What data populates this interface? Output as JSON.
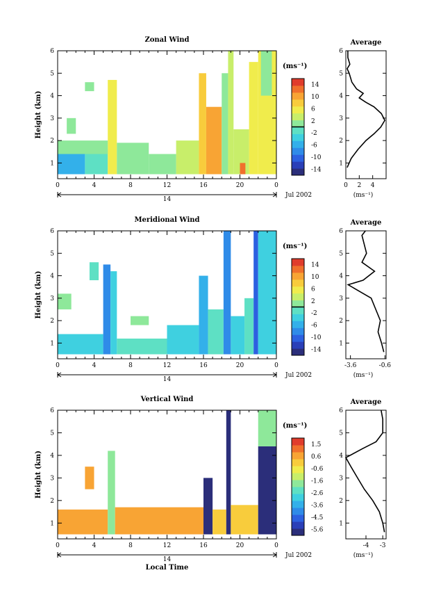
{
  "chart_data": [
    {
      "type": "heatmap",
      "title": "Zonal Wind",
      "ylabel": "Height (km)",
      "xlabel": "",
      "xlim": [
        0,
        24
      ],
      "ylim": [
        0.3,
        6
      ],
      "x_ticks": [
        "0",
        "4",
        "8",
        "12",
        "16",
        "20",
        "0"
      ],
      "y_ticks": [
        "1",
        "2",
        "3",
        "4",
        "5",
        "6"
      ],
      "date_label": "14",
      "date_suffix": "Jul 2002",
      "colorbar": {
        "unit": "(ms⁻¹)",
        "labels": [
          "14",
          "10",
          "6",
          "2",
          "-2",
          "-6",
          "-10",
          "-14"
        ],
        "min": -16,
        "max": 16,
        "zero_line": 0
      },
      "profile": {
        "title": "Average",
        "xlabel": "(ms⁻¹)",
        "x_ticks": [
          "0",
          "2",
          "4"
        ],
        "xlim": [
          0,
          6
        ],
        "y_ticks": [
          "1",
          "2",
          "3",
          "4",
          "5",
          "6"
        ],
        "points": [
          [
            0.2,
            0.8
          ],
          [
            0.8,
            1.2
          ],
          [
            1.8,
            1.6
          ],
          [
            3,
            2
          ],
          [
            4.2,
            2.3
          ],
          [
            5.2,
            2.6
          ],
          [
            5.8,
            2.9
          ],
          [
            5.3,
            3.2
          ],
          [
            4.2,
            3.5
          ],
          [
            3,
            3.7
          ],
          [
            2,
            3.9
          ],
          [
            2.6,
            4.1
          ],
          [
            1.6,
            4.3
          ],
          [
            0.9,
            4.6
          ],
          [
            0.5,
            5
          ],
          [
            0.2,
            5.2
          ],
          [
            0.6,
            5.4
          ],
          [
            0.3,
            5.7
          ],
          [
            0.3,
            6
          ]
        ]
      },
      "blocks": [
        {
          "x": [
            0,
            3
          ],
          "y": [
            0.5,
            1.4
          ],
          "v": -5
        },
        {
          "x": [
            3,
            5.5
          ],
          "y": [
            0.5,
            1.6
          ],
          "v": -2
        },
        {
          "x": [
            5.5,
            6.5
          ],
          "y": [
            0.5,
            4.7
          ],
          "v": 5
        },
        {
          "x": [
            0,
            5.5
          ],
          "y": [
            1.4,
            2
          ],
          "v": 1
        },
        {
          "x": [
            6.5,
            10
          ],
          "y": [
            0.5,
            1.9
          ],
          "v": 1
        },
        {
          "x": [
            10,
            13
          ],
          "y": [
            0.5,
            1.4
          ],
          "v": 2
        },
        {
          "x": [
            13,
            15.5
          ],
          "y": [
            0.5,
            2
          ],
          "v": 4
        },
        {
          "x": [
            15.5,
            16.3
          ],
          "y": [
            0.5,
            5
          ],
          "v": 9
        },
        {
          "x": [
            16.3,
            18
          ],
          "y": [
            0.5,
            3.5
          ],
          "v": 10
        },
        {
          "x": [
            18,
            18.7
          ],
          "y": [
            0.5,
            5
          ],
          "v": 1
        },
        {
          "x": [
            18.7,
            19.3
          ],
          "y": [
            0.5,
            6
          ],
          "v": 4
        },
        {
          "x": [
            19.3,
            21
          ],
          "y": [
            0.5,
            2.5
          ],
          "v": 3
        },
        {
          "x": [
            20,
            20.6
          ],
          "y": [
            0.5,
            1
          ],
          "v": 12
        },
        {
          "x": [
            21,
            22
          ],
          "y": [
            0.5,
            5.5
          ],
          "v": 5
        },
        {
          "x": [
            22,
            24
          ],
          "y": [
            0.5,
            6
          ],
          "v": 6
        },
        {
          "x": [
            22.3,
            23.5
          ],
          "y": [
            4,
            6
          ],
          "v": 0
        },
        {
          "x": [
            1,
            2
          ],
          "y": [
            2.3,
            3
          ],
          "v": 2
        },
        {
          "x": [
            3,
            4
          ],
          "y": [
            4.2,
            4.6
          ],
          "v": 1
        }
      ]
    },
    {
      "type": "heatmap",
      "title": "Meridional Wind",
      "ylabel": "Height (km)",
      "xlabel": "",
      "xlim": [
        0,
        24
      ],
      "ylim": [
        0.3,
        6
      ],
      "x_ticks": [
        "0",
        "4",
        "8",
        "12",
        "16",
        "20",
        "0"
      ],
      "y_ticks": [
        "1",
        "2",
        "3",
        "4",
        "5",
        "6"
      ],
      "date_label": "14",
      "date_suffix": "Jul 2002",
      "colorbar": {
        "unit": "(ms⁻¹)",
        "labels": [
          "14",
          "10",
          "6",
          "2",
          "-2",
          "-6",
          "-10",
          "-14"
        ],
        "min": -16,
        "max": 16,
        "zero_line": 0
      },
      "profile": {
        "title": "Average",
        "xlabel": "(ms⁻¹)",
        "x_ticks": [
          "-3.6",
          "-0.6"
        ],
        "xlim": [
          -4,
          -0.5
        ],
        "y_ticks": [
          "1",
          "2",
          "3",
          "4",
          "5",
          "6"
        ],
        "points": [
          [
            -0.7,
            0.6
          ],
          [
            -0.9,
            1
          ],
          [
            -1.2,
            1.5
          ],
          [
            -1.0,
            2
          ],
          [
            -1.4,
            2.5
          ],
          [
            -1.8,
            3
          ],
          [
            -2.8,
            3.3
          ],
          [
            -3.8,
            3.6
          ],
          [
            -2.5,
            3.8
          ],
          [
            -1.5,
            4.2
          ],
          [
            -2.6,
            4.6
          ],
          [
            -2.2,
            5
          ],
          [
            -2.4,
            5.4
          ],
          [
            -2.6,
            5.8
          ],
          [
            -2.3,
            6
          ]
        ]
      },
      "blocks": [
        {
          "x": [
            0,
            5
          ],
          "y": [
            0.5,
            1.4
          ],
          "v": -4
        },
        {
          "x": [
            5,
            5.8
          ],
          "y": [
            0.5,
            4.5
          ],
          "v": -8
        },
        {
          "x": [
            5.8,
            6.5
          ],
          "y": [
            0.5,
            4.2
          ],
          "v": -3
        },
        {
          "x": [
            6.5,
            12
          ],
          "y": [
            0.5,
            1.2
          ],
          "v": -2
        },
        {
          "x": [
            12,
            15.5
          ],
          "y": [
            0.5,
            1.8
          ],
          "v": -3
        },
        {
          "x": [
            15.5,
            16.5
          ],
          "y": [
            0.5,
            4
          ],
          "v": -5
        },
        {
          "x": [
            16.5,
            18.2
          ],
          "y": [
            0.5,
            2.5
          ],
          "v": -2
        },
        {
          "x": [
            18.2,
            19
          ],
          "y": [
            0.5,
            6
          ],
          "v": -9
        },
        {
          "x": [
            19,
            20.5
          ],
          "y": [
            0.5,
            2.2
          ],
          "v": -3
        },
        {
          "x": [
            20.5,
            21.5
          ],
          "y": [
            0.5,
            3
          ],
          "v": -1
        },
        {
          "x": [
            21.5,
            22
          ],
          "y": [
            0.5,
            6
          ],
          "v": -11
        },
        {
          "x": [
            22,
            24
          ],
          "y": [
            0.5,
            6
          ],
          "v": -4
        },
        {
          "x": [
            0,
            1.5
          ],
          "y": [
            2.5,
            3.2
          ],
          "v": 2
        },
        {
          "x": [
            3.5,
            4.5
          ],
          "y": [
            3.8,
            4.6
          ],
          "v": -1
        },
        {
          "x": [
            8,
            10
          ],
          "y": [
            1.8,
            2.2
          ],
          "v": 1
        }
      ]
    },
    {
      "type": "heatmap",
      "title": "Vertical Wind",
      "ylabel": "Height (km)",
      "xlabel": "Local Time",
      "xlim": [
        0,
        24
      ],
      "ylim": [
        0.3,
        6
      ],
      "x_ticks": [
        "0",
        "4",
        "8",
        "12",
        "16",
        "20",
        "0"
      ],
      "y_ticks": [
        "1",
        "2",
        "3",
        "4",
        "5",
        "6"
      ],
      "date_label": "14",
      "date_suffix": "Jul 2002",
      "colorbar": {
        "unit": "(ms⁻¹)",
        "labels": [
          "1.5",
          "0.6",
          "-0.6",
          "-1.6",
          "-2.6",
          "-3.6",
          "-4.5",
          "-5.6"
        ],
        "min": -6,
        "max": 2,
        "zero_line": null
      },
      "profile": {
        "title": "Average",
        "xlabel": "(ms⁻¹)",
        "x_ticks": [
          "-4",
          "-3"
        ],
        "xlim": [
          -5.2,
          -2.8
        ],
        "y_ticks": [
          "1",
          "2",
          "3",
          "4",
          "5",
          "6"
        ],
        "points": [
          [
            -2.9,
            0.6
          ],
          [
            -3.0,
            1
          ],
          [
            -3.2,
            1.5
          ],
          [
            -3.6,
            2
          ],
          [
            -4.1,
            2.5
          ],
          [
            -4.5,
            3
          ],
          [
            -4.9,
            3.5
          ],
          [
            -5.2,
            3.9
          ],
          [
            -4.2,
            4.3
          ],
          [
            -3.4,
            4.6
          ],
          [
            -3.0,
            5
          ],
          [
            -3.0,
            5.6
          ],
          [
            -3.1,
            6
          ]
        ]
      },
      "blocks": [
        {
          "x": [
            0,
            5.5
          ],
          "y": [
            0.5,
            1.6
          ],
          "v": 0.3
        },
        {
          "x": [
            5.5,
            6.3
          ],
          "y": [
            0.5,
            4.2
          ],
          "v": -2
        },
        {
          "x": [
            6.3,
            16
          ],
          "y": [
            0.5,
            1.7
          ],
          "v": 0.5
        },
        {
          "x": [
            16,
            17
          ],
          "y": [
            0.5,
            3
          ],
          "v": -5.8
        },
        {
          "x": [
            17,
            18.5
          ],
          "y": [
            0.5,
            1.6
          ],
          "v": 0.1
        },
        {
          "x": [
            18.5,
            19
          ],
          "y": [
            0.5,
            6
          ],
          "v": -5.5
        },
        {
          "x": [
            19,
            22
          ],
          "y": [
            0.5,
            1.8
          ],
          "v": 0.2
        },
        {
          "x": [
            22,
            24
          ],
          "y": [
            0.5,
            4.4
          ],
          "v": -6
        },
        {
          "x": [
            22,
            24
          ],
          "y": [
            4.4,
            6
          ],
          "v": -2
        },
        {
          "x": [
            3,
            4
          ],
          "y": [
            2.5,
            3.5
          ],
          "v": 0.8
        }
      ]
    }
  ]
}
